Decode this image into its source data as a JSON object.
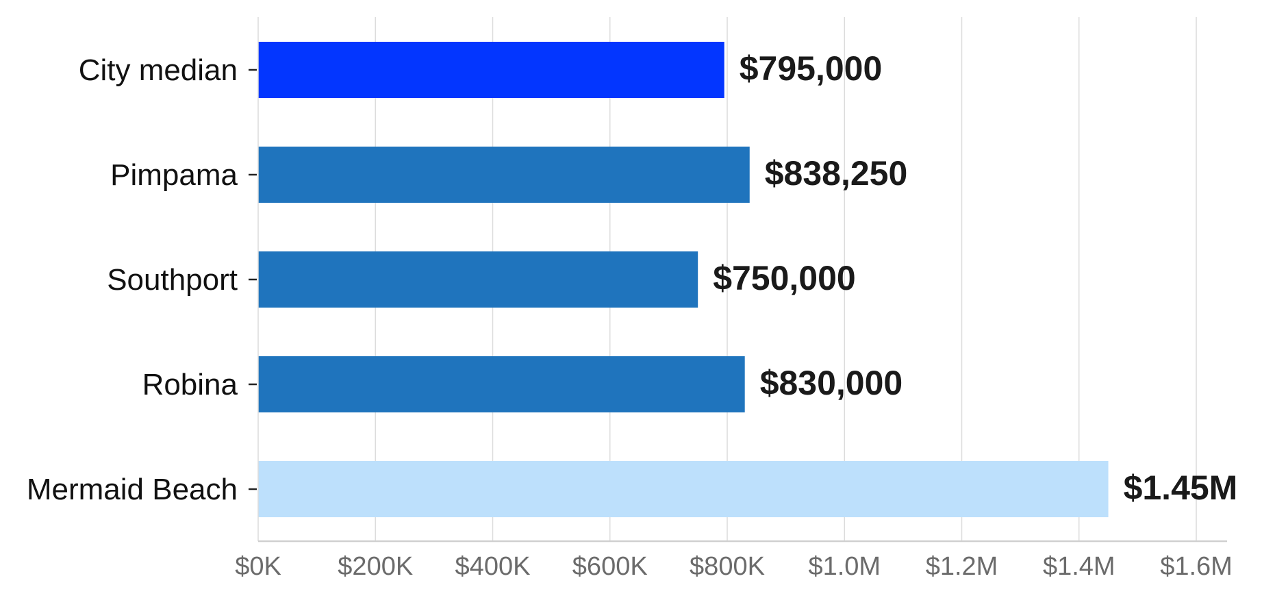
{
  "chart_data": {
    "type": "bar",
    "orientation": "horizontal",
    "title": "",
    "xlabel": "",
    "ylabel": "",
    "xlim": [
      0,
      1600000
    ],
    "grid": "vertical",
    "legend": "none",
    "x_tick_labels": [
      {
        "value": 0,
        "label": "$0K"
      },
      {
        "value": 200000,
        "label": "$200K"
      },
      {
        "value": 400000,
        "label": "$400K"
      },
      {
        "value": 600000,
        "label": "$600K"
      },
      {
        "value": 800000,
        "label": "$800K"
      },
      {
        "value": 1000000,
        "label": "$1.0M"
      },
      {
        "value": 1200000,
        "label": "$1.2M"
      },
      {
        "value": 1400000,
        "label": "$1.4M"
      },
      {
        "value": 1600000,
        "label": "$1.6M"
      }
    ],
    "bars": [
      {
        "category": "City median",
        "value": 795000,
        "label": "$795,000",
        "color": "#0336ff"
      },
      {
        "category": "Pimpama",
        "value": 838250,
        "label": "$838,250",
        "color": "#1f74bd"
      },
      {
        "category": "Southport",
        "value": 750000,
        "label": "$750,000",
        "color": "#1f74bd"
      },
      {
        "category": "Robina",
        "value": 830000,
        "label": "$830,000",
        "color": "#1f74bd"
      },
      {
        "category": "Mermaid Beach",
        "value": 1450000,
        "label": "$1.45M",
        "color": "#bde0fc"
      }
    ]
  }
}
